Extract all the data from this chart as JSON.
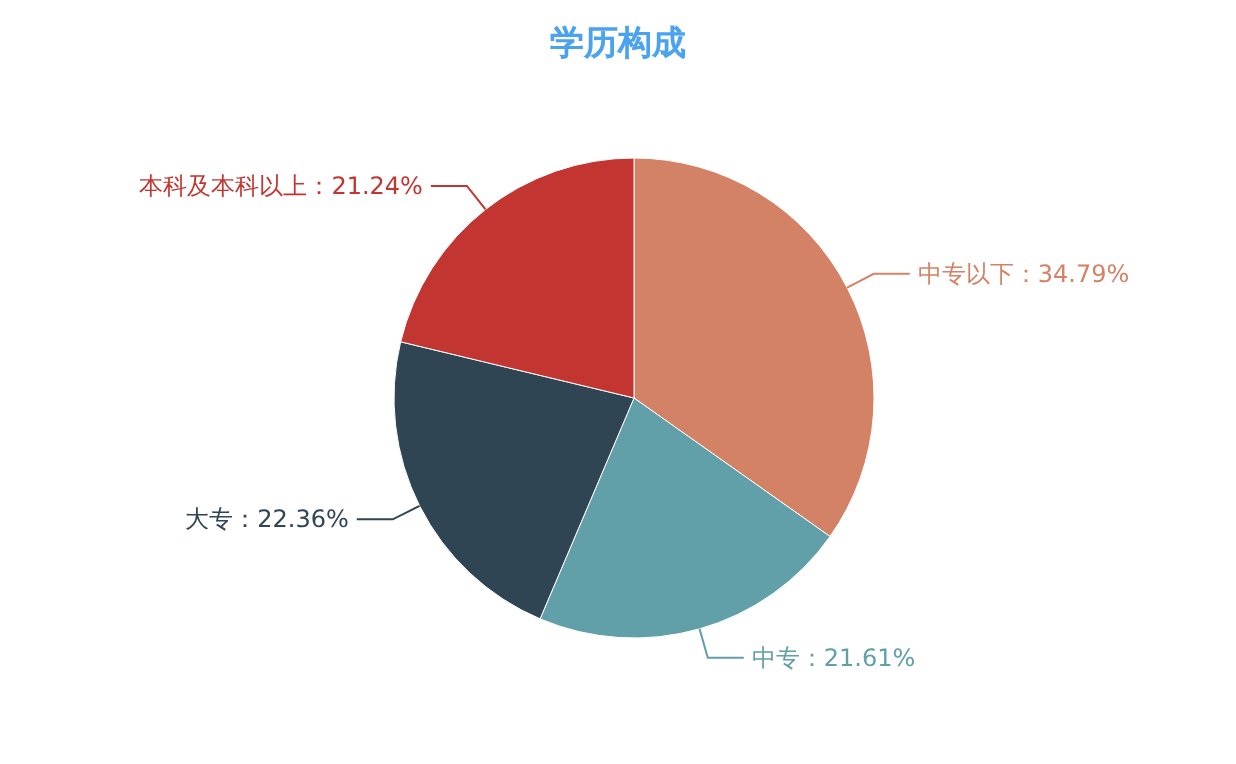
{
  "chart_data": {
    "type": "pie",
    "title": "学历构成",
    "categories": [
      "中专以下",
      "中专",
      "大专",
      "本科及本科以上"
    ],
    "values": [
      34.79,
      21.61,
      22.36,
      21.24
    ],
    "value_labels": [
      "34.79%",
      "21.61%",
      "22.36%",
      "21.24%"
    ],
    "colors": [
      "#d48265",
      "#61a0a8",
      "#2f4554",
      "#c23531"
    ],
    "legend": false
  }
}
